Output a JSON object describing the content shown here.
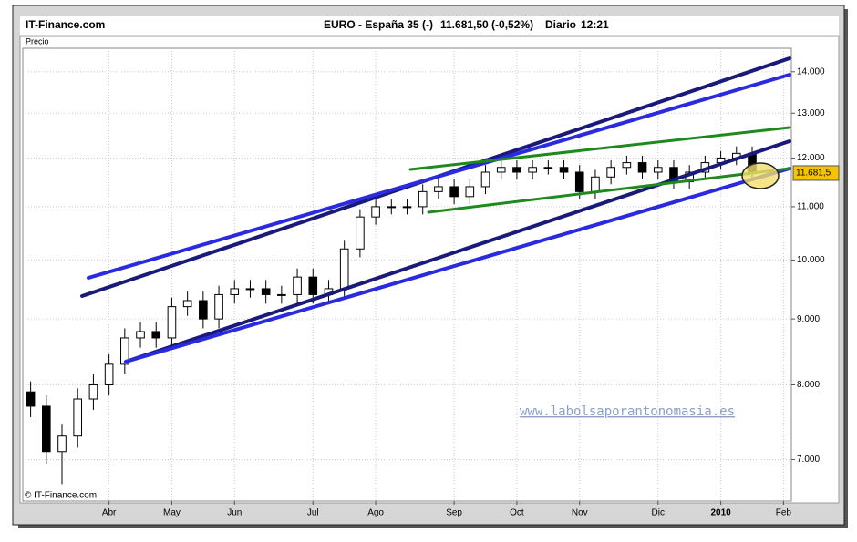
{
  "chart_data": {
    "type": "candlestick",
    "brand": "IT-Finance.com",
    "title": "EURO - España 35 (-)",
    "quote": "11.681,50 (-0,52%)",
    "period": "Diario",
    "time": "12:21",
    "ylabel": "Precio",
    "copyright": "© IT-Finance.com",
    "watermark": "www.labolsaporantonomasia.es",
    "log_scale": true,
    "grid": true,
    "up_color": "#ffffff",
    "down_color": "#000000",
    "edge_color": "#000000",
    "last_price": {
      "value": 11681.5,
      "label": "11.681,5"
    },
    "ylim": [
      6500,
      14600
    ],
    "yticks": [
      {
        "value": 7000,
        "label": "7.000"
      },
      {
        "value": 8000,
        "label": "8.000"
      },
      {
        "value": 9000,
        "label": "9.000"
      },
      {
        "value": 10000,
        "label": "10.000"
      },
      {
        "value": 11000,
        "label": "11.000"
      },
      {
        "value": 12000,
        "label": "12.000"
      },
      {
        "value": 13000,
        "label": "13.000"
      },
      {
        "value": 14000,
        "label": "14.000"
      }
    ],
    "categories": [
      null,
      null,
      null,
      null,
      null,
      "Abr",
      null,
      null,
      null,
      "May",
      null,
      null,
      null,
      "Jun",
      null,
      null,
      null,
      null,
      "Jul",
      null,
      null,
      null,
      "Ago",
      null,
      null,
      null,
      null,
      "Sep",
      null,
      null,
      null,
      "Oct",
      null,
      null,
      null,
      "Nov",
      null,
      null,
      null,
      null,
      "Dic",
      null,
      null,
      null,
      "2010",
      null,
      null,
      null,
      "Feb"
    ],
    "open": [
      7900,
      7700,
      7100,
      7300,
      7800,
      8000,
      8300,
      8700,
      8800,
      8700,
      9200,
      9300,
      9000,
      9400,
      9500,
      9500,
      9400,
      9400,
      9700,
      9400,
      9500,
      10200,
      10800,
      11000,
      11000,
      11000,
      11300,
      11400,
      11200,
      11400,
      11700,
      11800,
      11700,
      11800,
      11800,
      11700,
      11300,
      11600,
      11800,
      11900,
      11700,
      11800,
      11500,
      11700,
      11900,
      12000,
      12100,
      null,
      null
    ],
    "high": [
      8050,
      7850,
      7450,
      7950,
      8150,
      8450,
      8850,
      8950,
      8950,
      9350,
      9450,
      9450,
      9550,
      9650,
      9650,
      9650,
      9550,
      9850,
      9850,
      9650,
      10350,
      10950,
      11150,
      11150,
      11150,
      11450,
      11550,
      11550,
      11550,
      11850,
      11950,
      11950,
      11950,
      11950,
      11950,
      11850,
      11750,
      11950,
      12050,
      12050,
      11950,
      11950,
      11850,
      12050,
      12150,
      12250,
      12250,
      null,
      null
    ],
    "low": [
      7550,
      6950,
      6700,
      7150,
      7650,
      7850,
      8150,
      8550,
      8550,
      8550,
      9050,
      8850,
      8850,
      9250,
      9350,
      9250,
      9250,
      9250,
      9250,
      9250,
      9350,
      10050,
      10650,
      10850,
      10850,
      10850,
      11150,
      11050,
      11050,
      11250,
      11550,
      11550,
      11550,
      11650,
      11550,
      11150,
      11150,
      11450,
      11650,
      11550,
      11550,
      11350,
      11350,
      11550,
      11750,
      11850,
      11550,
      null,
      null
    ],
    "close": [
      7700,
      7100,
      7300,
      7800,
      8000,
      8300,
      8700,
      8800,
      8700,
      9200,
      9300,
      9000,
      9400,
      9500,
      9500,
      9400,
      9400,
      9700,
      9400,
      9500,
      10200,
      10800,
      11000,
      11000,
      11000,
      11300,
      11400,
      11200,
      11400,
      11700,
      11800,
      11700,
      11800,
      11800,
      11700,
      11300,
      11600,
      11800,
      11900,
      11700,
      11800,
      11500,
      11700,
      11900,
      12000,
      12100,
      11700,
      null,
      null
    ]
  }
}
